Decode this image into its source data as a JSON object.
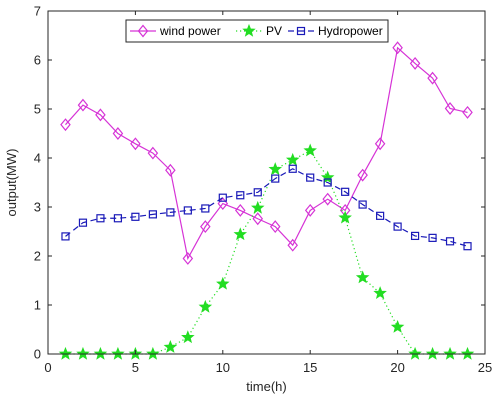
{
  "chart_data": {
    "type": "line",
    "title": "",
    "xlabel": "time(h)",
    "ylabel": "output(MW)",
    "xlim": [
      0,
      25
    ],
    "ylim": [
      0,
      7
    ],
    "xticks": [
      "0",
      "5",
      "10",
      "15",
      "20",
      "25"
    ],
    "yticks": [
      "0",
      "1",
      "2",
      "3",
      "4",
      "5",
      "6",
      "7"
    ],
    "grid": false,
    "legend_position": "top-center",
    "x": [
      1,
      2,
      3,
      4,
      5,
      6,
      7,
      8,
      9,
      10,
      11,
      12,
      13,
      14,
      15,
      16,
      17,
      18,
      19,
      20,
      21,
      22,
      23,
      24
    ],
    "series": [
      {
        "name": "wind power",
        "color": "#d633d6",
        "line_style": "solid",
        "marker": "diamond",
        "values": [
          4.68,
          5.08,
          4.88,
          4.5,
          4.29,
          4.1,
          3.75,
          1.95,
          2.6,
          3.07,
          2.93,
          2.76,
          2.6,
          2.22,
          2.93,
          3.16,
          2.93,
          3.65,
          4.29,
          6.25,
          5.93,
          5.63,
          5.01,
          4.93
        ]
      },
      {
        "name": "PV",
        "color": "#22dd22",
        "line_style": "dotted",
        "marker": "star",
        "values": [
          0.0,
          0.0,
          0.0,
          0.0,
          0.0,
          0.0,
          0.14,
          0.34,
          0.96,
          1.43,
          2.44,
          2.98,
          3.77,
          3.96,
          4.15,
          3.6,
          2.78,
          1.56,
          1.24,
          0.55,
          0.0,
          0.0,
          0.0,
          0.0
        ]
      },
      {
        "name": "Hydropower",
        "color": "#1a1ab8",
        "line_style": "dashed",
        "marker": "square",
        "values": [
          2.4,
          2.68,
          2.77,
          2.77,
          2.8,
          2.85,
          2.89,
          2.93,
          2.97,
          3.19,
          3.24,
          3.3,
          3.58,
          3.78,
          3.6,
          3.5,
          3.31,
          3.05,
          2.82,
          2.6,
          2.41,
          2.37,
          2.3,
          2.2
        ]
      }
    ]
  }
}
